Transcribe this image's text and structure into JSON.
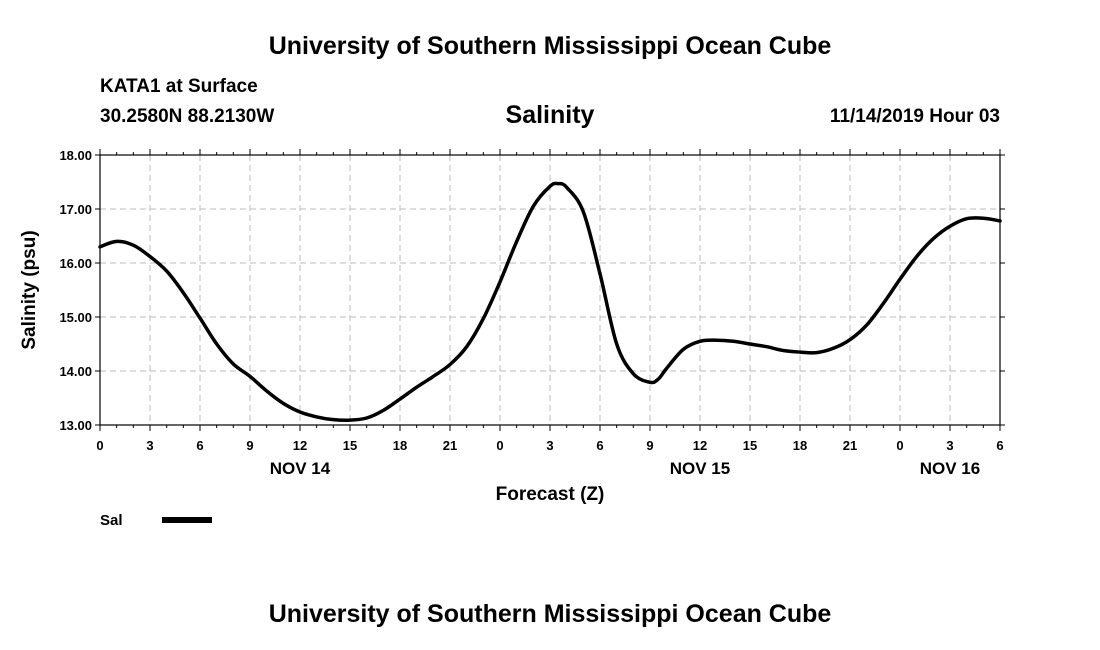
{
  "header": {
    "title": "University of Southern Mississippi Ocean Cube",
    "station": "KATA1 at Surface",
    "location": "30.2580N 88.2130W",
    "parameter": "Salinity",
    "datetime": "11/14/2019 Hour 03"
  },
  "footer": {
    "title": "University of Southern Mississippi Ocean Cube"
  },
  "chart_data": {
    "type": "line",
    "xlabel": "Forecast (Z)",
    "ylabel": "Salinity (psu)",
    "xlim": [
      0,
      54
    ],
    "ylim": [
      13.0,
      18.0
    ],
    "y_ticks": [
      "13.00",
      "14.00",
      "15.00",
      "16.00",
      "17.00",
      "18.00"
    ],
    "x_tick_labels": [
      "0",
      "3",
      "6",
      "9",
      "12",
      "15",
      "18",
      "21",
      "0",
      "3",
      "6",
      "9",
      "12",
      "15",
      "18",
      "21",
      "0",
      "3",
      "6"
    ],
    "day_labels": [
      {
        "label": "NOV 14",
        "x": 12
      },
      {
        "label": "NOV 15",
        "x": 36
      },
      {
        "label": "NOV 16",
        "x": 51
      }
    ],
    "grid": true,
    "legend": {
      "placement": "bottom-left",
      "color": "#000000"
    },
    "series": [
      {
        "name": "Sal",
        "color": "#000000",
        "x": [
          0,
          1,
          2,
          3,
          4,
          5,
          6,
          7,
          8,
          9,
          10,
          11,
          12,
          13,
          14,
          15,
          16,
          17,
          18,
          19,
          20,
          21,
          22,
          23,
          24,
          25,
          26,
          27,
          27.5,
          28,
          29,
          30,
          31,
          32,
          33,
          33.5,
          34,
          35,
          36,
          37,
          38,
          39,
          40,
          41,
          42,
          43,
          44,
          45,
          46,
          47,
          48,
          49,
          50,
          51,
          52,
          53,
          54
        ],
        "y": [
          16.3,
          16.4,
          16.33,
          16.12,
          15.85,
          15.45,
          14.98,
          14.5,
          14.13,
          13.9,
          13.63,
          13.4,
          13.24,
          13.15,
          13.1,
          13.09,
          13.13,
          13.27,
          13.48,
          13.7,
          13.9,
          14.12,
          14.45,
          14.97,
          15.65,
          16.4,
          17.05,
          17.42,
          17.47,
          17.4,
          16.95,
          15.8,
          14.5,
          13.95,
          13.79,
          13.85,
          14.05,
          14.4,
          14.55,
          14.57,
          14.55,
          14.5,
          14.45,
          14.38,
          14.35,
          14.34,
          14.42,
          14.58,
          14.85,
          15.25,
          15.7,
          16.12,
          16.45,
          16.68,
          16.82,
          16.83,
          16.78
        ]
      }
    ]
  }
}
